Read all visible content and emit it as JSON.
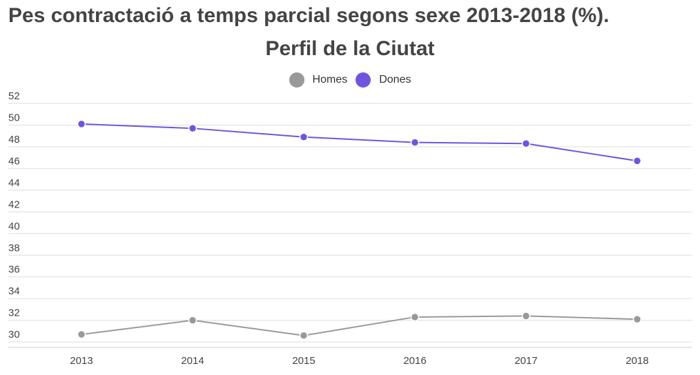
{
  "chart_data": {
    "type": "line",
    "title": "Pes contractació a temps parcial segons sexe 2013-2018 (%).",
    "subtitle": "Perfil de la Ciutat",
    "categories": [
      "2013",
      "2014",
      "2015",
      "2016",
      "2017",
      "2018"
    ],
    "ylim": [
      29.5,
      52
    ],
    "yticks": [
      30,
      32,
      34,
      36,
      38,
      40,
      42,
      44,
      46,
      48,
      50,
      52
    ],
    "grid": true,
    "legend_placement": "top-center",
    "series": [
      {
        "name": "Homes",
        "color": "#999999",
        "values": [
          30.7,
          32.0,
          30.6,
          32.3,
          32.4,
          32.1
        ]
      },
      {
        "name": "Dones",
        "color": "#7055dc",
        "values": [
          50.1,
          49.7,
          48.9,
          48.4,
          48.3,
          46.7
        ]
      }
    ]
  }
}
